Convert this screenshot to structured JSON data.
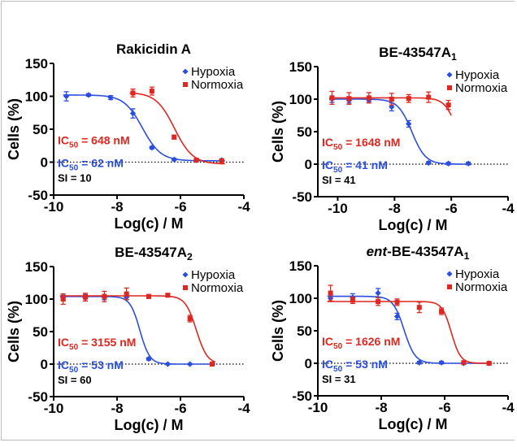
{
  "colors": {
    "hypoxia": "#2a4ee0",
    "normoxia": "#e0271f",
    "axis": "#000000"
  },
  "legend": {
    "hypoxia": "Hypoxia",
    "normoxia": "Normoxia"
  },
  "chart_data": [
    {
      "type": "scatter",
      "title": "Rakicidin A",
      "title_parts": [
        {
          "text": "Rakicidin A"
        }
      ],
      "xlabel": "Log(c) / M",
      "ylabel": "Cells (%)",
      "xlim": [
        -10,
        -4
      ],
      "ylim": [
        -50,
        150
      ],
      "xticks": [
        -10,
        -8,
        -6,
        -4
      ],
      "yticks": [
        -50,
        0,
        50,
        100,
        150
      ],
      "legend_position": "top-right",
      "series": [
        {
          "name": "Hypoxia",
          "color": "#2a4ee0",
          "x": [
            -9.6,
            -8.9,
            -8.2,
            -7.5,
            -6.9,
            -6.2,
            -5.5,
            -4.7
          ],
          "y": [
            100,
            102,
            98,
            74,
            22,
            4,
            3,
            3
          ],
          "err": [
            7,
            2,
            3,
            7,
            2,
            2,
            2,
            2
          ],
          "fit": {
            "ic50_log": -7.2,
            "top": 102,
            "bottom": 2,
            "slope": 1.5
          }
        },
        {
          "name": "Normoxia",
          "color": "#e0271f",
          "x": [
            -7.5,
            -6.9,
            -6.2,
            -5.5,
            -4.7
          ],
          "y": [
            105,
            108,
            38,
            3,
            2
          ],
          "err": [
            6,
            6,
            3,
            2,
            2
          ],
          "fit": {
            "ic50_log": -6.19,
            "top": 106,
            "bottom": -3,
            "slope": 1.5
          }
        }
      ],
      "annotations": [
        {
          "color": "#e0271f",
          "parts": [
            {
              "text": "IC"
            },
            {
              "text": "50",
              "sub": true
            },
            {
              "text": " = 648 nM"
            }
          ]
        },
        {
          "color": "#2a4ee0",
          "parts": [
            {
              "text": "IC"
            },
            {
              "text": "50",
              "sub": true
            },
            {
              "text": " = 62 nM"
            }
          ]
        },
        {
          "color": "#000000",
          "parts": [
            {
              "text": "SI = 10"
            }
          ]
        }
      ]
    },
    {
      "type": "scatter",
      "title": "BE-43547A1",
      "title_parts": [
        {
          "text": "BE-43547A"
        },
        {
          "text": "1",
          "sub": true
        }
      ],
      "xlabel": "Log(c) / M",
      "ylabel": "Cells (%)",
      "xlim": [
        -10.7,
        -4
      ],
      "ylim": [
        -50,
        150
      ],
      "xticks": [
        -10,
        -8,
        -6,
        -4
      ],
      "yticks": [
        -50,
        0,
        50,
        100,
        150
      ],
      "legend_position": "top-right",
      "series": [
        {
          "name": "Hypoxia",
          "color": "#2a4ee0",
          "x": [
            -10.2,
            -9.6,
            -8.9,
            -8.1,
            -7.5,
            -6.8,
            -6.1,
            -5.4
          ],
          "y": [
            100,
            98,
            99,
            88,
            62,
            2,
            1,
            1
          ],
          "err": [
            5,
            4,
            3,
            6,
            5,
            2,
            2,
            2
          ],
          "fit": {
            "ic50_log": -7.39,
            "top": 100,
            "bottom": 0,
            "slope": 1.8
          }
        },
        {
          "name": "Normoxia",
          "color": "#e0271f",
          "x": [
            -10.2,
            -9.6,
            -8.9,
            -8.1,
            -7.5,
            -6.8,
            -6.1
          ],
          "y": [
            102,
            101,
            102,
            100,
            101,
            103,
            91
          ],
          "err": [
            10,
            9,
            8,
            9,
            6,
            8,
            7
          ],
          "fit": {
            "ic50_log": -5.78,
            "top": 102,
            "bottom": 0,
            "slope": 2.0
          }
        }
      ],
      "annotations": [
        {
          "color": "#e0271f",
          "parts": [
            {
              "text": "IC"
            },
            {
              "text": "50",
              "sub": true
            },
            {
              "text": " = 1648 nM"
            }
          ]
        },
        {
          "color": "#2a4ee0",
          "parts": [
            {
              "text": "IC"
            },
            {
              "text": "50",
              "sub": true
            },
            {
              "text": " = 41 nM"
            }
          ]
        },
        {
          "color": "#000000",
          "parts": [
            {
              "text": "SI = 41"
            }
          ]
        }
      ]
    },
    {
      "type": "scatter",
      "title": "BE-43547A2",
      "title_parts": [
        {
          "text": "BE-43547A"
        },
        {
          "text": "2",
          "sub": true
        }
      ],
      "xlabel": "Log(c) / M",
      "ylabel": "Cells (%)",
      "xlim": [
        -10,
        -4
      ],
      "ylim": [
        -50,
        150
      ],
      "xticks": [
        -10,
        -8,
        -6,
        -4
      ],
      "yticks": [
        -50,
        0,
        50,
        100,
        150
      ],
      "legend_position": "top-right",
      "series": [
        {
          "name": "Hypoxia",
          "color": "#2a4ee0",
          "x": [
            -9.7,
            -9.0,
            -8.4,
            -7.7,
            -7.0,
            -6.4,
            -5.7,
            -5.0
          ],
          "y": [
            102,
            102,
            103,
            103,
            8,
            0,
            0,
            0
          ],
          "err": [
            4,
            5,
            4,
            4,
            2,
            1,
            1,
            1
          ],
          "fit": {
            "ic50_log": -7.28,
            "top": 104,
            "bottom": 0,
            "slope": 2.8
          }
        },
        {
          "name": "Normoxia",
          "color": "#e0271f",
          "x": [
            -9.7,
            -9.0,
            -8.4,
            -7.7,
            -7.0,
            -6.4,
            -5.7,
            -5.0
          ],
          "y": [
            100,
            103,
            104,
            108,
            104,
            106,
            70,
            0
          ],
          "err": [
            8,
            6,
            8,
            9,
            3,
            2,
            5,
            2
          ],
          "fit": {
            "ic50_log": -5.5,
            "top": 105,
            "bottom": 0,
            "slope": 2.5
          }
        }
      ],
      "annotations": [
        {
          "color": "#e0271f",
          "parts": [
            {
              "text": "IC"
            },
            {
              "text": "50",
              "sub": true
            },
            {
              "text": " = 3155 nM"
            }
          ]
        },
        {
          "color": "#2a4ee0",
          "parts": [
            {
              "text": "IC"
            },
            {
              "text": "50",
              "sub": true
            },
            {
              "text": " = 53 nM"
            }
          ]
        },
        {
          "color": "#000000",
          "parts": [
            {
              "text": "SI = 60"
            }
          ]
        }
      ]
    },
    {
      "type": "scatter",
      "title": "ent-BE-43547A1",
      "title_parts": [
        {
          "text": "ent",
          "italic": true
        },
        {
          "text": "-BE-43547A"
        },
        {
          "text": "1",
          "sub": true
        }
      ],
      "xlabel": "Log(c) / M",
      "ylabel": "Cells (%)",
      "xlim": [
        -10,
        -4
      ],
      "ylim": [
        -50,
        150
      ],
      "xticks": [
        -10,
        -8,
        -6,
        -4
      ],
      "yticks": [
        -50,
        0,
        50,
        100,
        150
      ],
      "legend_position": "top-right",
      "series": [
        {
          "name": "Hypoxia",
          "color": "#2a4ee0",
          "x": [
            -9.6,
            -8.9,
            -8.1,
            -7.5,
            -6.8,
            -6.1,
            -5.4,
            -4.6
          ],
          "y": [
            100,
            101,
            108,
            72,
            1,
            1,
            0,
            0
          ],
          "err": [
            5,
            6,
            7,
            5,
            2,
            2,
            1,
            1
          ],
          "fit": {
            "ic50_log": -7.28,
            "top": 103,
            "bottom": 0,
            "slope": 2.5
          }
        },
        {
          "name": "Normoxia",
          "color": "#e0271f",
          "x": [
            -9.6,
            -8.9,
            -8.1,
            -7.5,
            -6.8,
            -6.1,
            -5.4,
            -4.6
          ],
          "y": [
            108,
            97,
            95,
            94,
            86,
            80,
            1,
            0
          ],
          "err": [
            12,
            5,
            6,
            5,
            8,
            5,
            2,
            2
          ],
          "fit": {
            "ic50_log": -5.79,
            "top": 95,
            "bottom": 0,
            "slope": 3.0
          }
        }
      ],
      "annotations": [
        {
          "color": "#e0271f",
          "parts": [
            {
              "text": "IC"
            },
            {
              "text": "50",
              "sub": true
            },
            {
              "text": " = 1626 nM"
            }
          ]
        },
        {
          "color": "#2a4ee0",
          "parts": [
            {
              "text": "IC"
            },
            {
              "text": "50",
              "sub": true
            },
            {
              "text": " = 53 nM"
            }
          ]
        },
        {
          "color": "#000000",
          "parts": [
            {
              "text": "SI = 31"
            }
          ]
        }
      ]
    }
  ]
}
